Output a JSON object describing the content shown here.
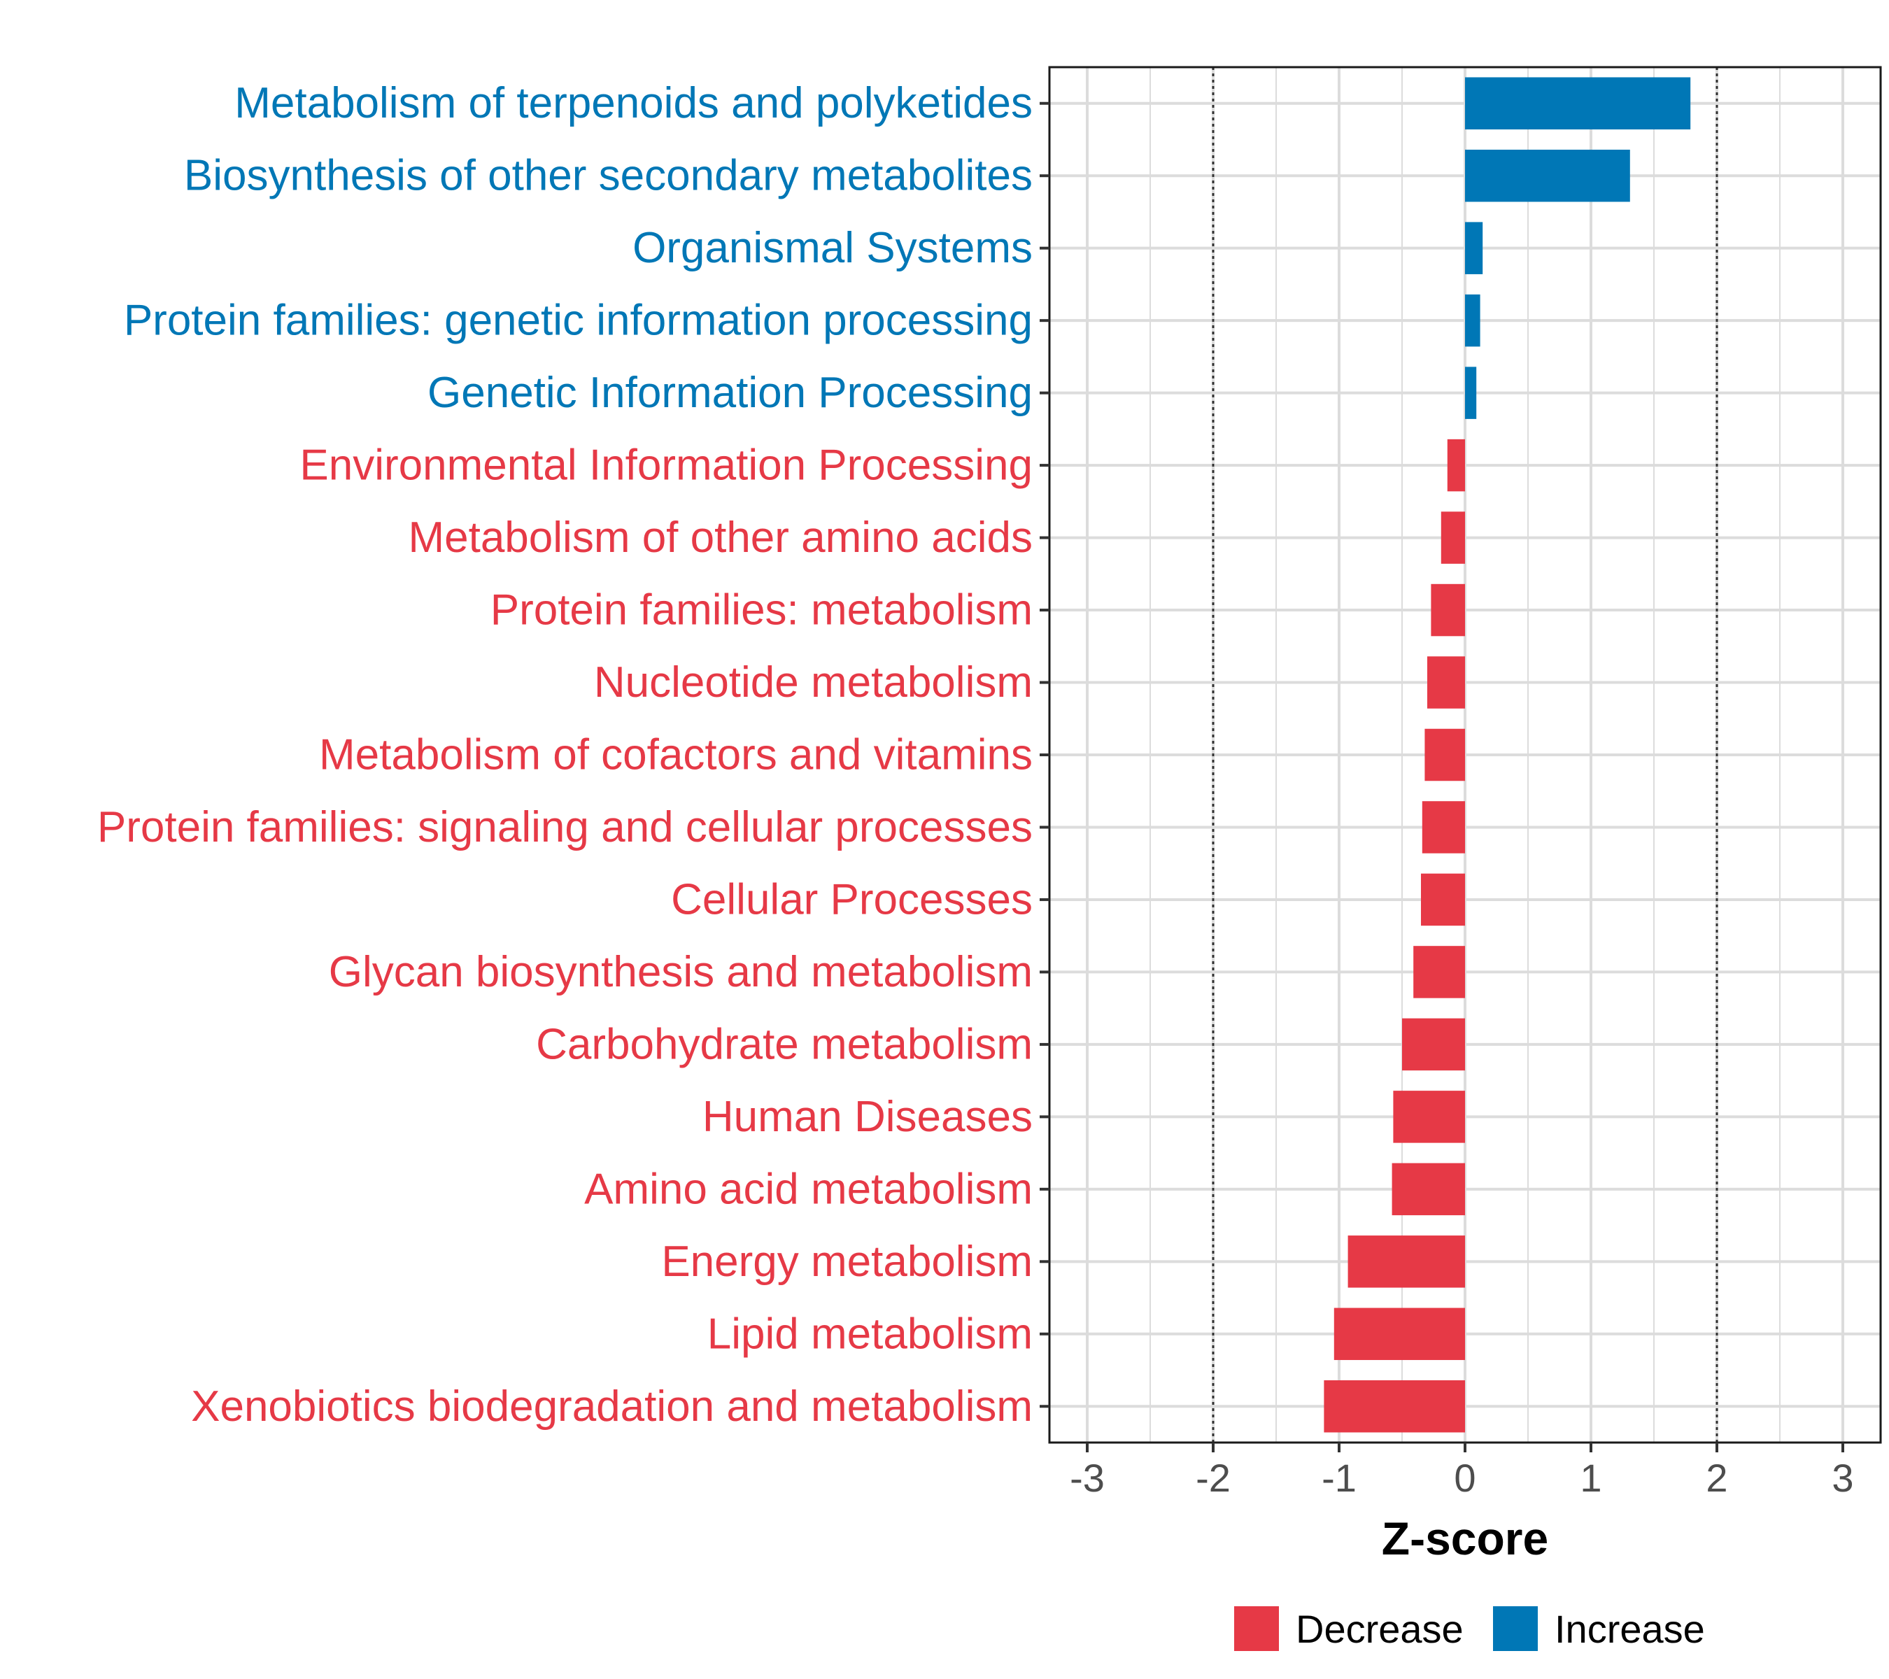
{
  "chart_data": {
    "type": "bar",
    "orientation": "horizontal",
    "xlabel": "Z-score",
    "xlim": [
      -3,
      3
    ],
    "xticks": [
      -3,
      -2,
      -1,
      0,
      1,
      2,
      3
    ],
    "xtick_labels": [
      "-3",
      "-2",
      "-1",
      "0",
      "1",
      "2",
      "3"
    ],
    "reference_lines": [
      -2,
      2
    ],
    "grid": true,
    "colors": {
      "Decrease": "#e63946",
      "Increase": "#0077b6"
    },
    "categories": [
      "Metabolism of terpenoids and polyketides",
      "Biosynthesis of other secondary metabolites",
      "Organismal Systems",
      "Protein families: genetic information processing",
      "Genetic Information Processing",
      "Environmental Information Processing",
      "Metabolism of other amino acids",
      "Protein families: metabolism",
      "Nucleotide metabolism",
      "Metabolism of cofactors and vitamins",
      "Protein families: signaling and cellular processes",
      "Cellular Processes",
      "Glycan biosynthesis and metabolism",
      "Carbohydrate metabolism",
      "Human Diseases",
      "Amino acid metabolism",
      "Energy metabolism",
      "Lipid metabolism",
      "Xenobiotics biodegradation and metabolism"
    ],
    "values": [
      1.79,
      1.31,
      0.14,
      0.12,
      0.09,
      -0.14,
      -0.19,
      -0.27,
      -0.3,
      -0.32,
      -0.34,
      -0.35,
      -0.41,
      -0.5,
      -0.57,
      -0.58,
      -0.93,
      -1.04,
      -1.12
    ],
    "groups": [
      "Increase",
      "Increase",
      "Increase",
      "Increase",
      "Increase",
      "Decrease",
      "Decrease",
      "Decrease",
      "Decrease",
      "Decrease",
      "Decrease",
      "Decrease",
      "Decrease",
      "Decrease",
      "Decrease",
      "Decrease",
      "Decrease",
      "Decrease",
      "Decrease"
    ],
    "legend": [
      {
        "label": "Decrease",
        "color": "#e63946"
      },
      {
        "label": "Increase",
        "color": "#0077b6"
      }
    ],
    "legend_position": "bottom"
  }
}
